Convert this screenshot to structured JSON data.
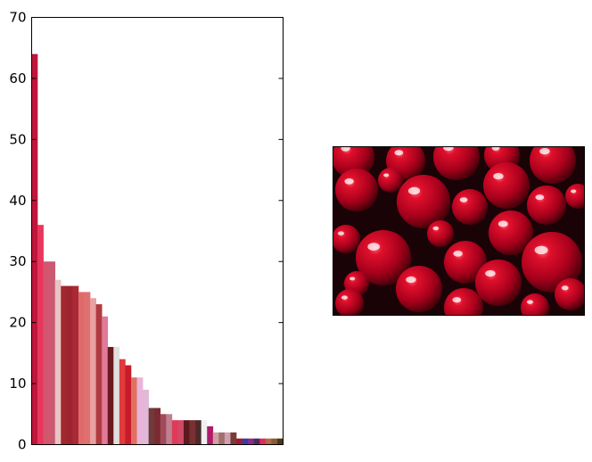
{
  "chart_data": {
    "type": "bar",
    "ylim": [
      0,
      70
    ],
    "yticks": [
      "0",
      "10",
      "20",
      "30",
      "40",
      "50",
      "60",
      "70"
    ],
    "grid": false,
    "values": [
      64,
      36,
      30,
      30,
      27,
      26,
      26,
      26,
      25,
      25,
      24,
      23,
      21,
      16,
      16,
      14,
      13,
      11,
      11,
      9,
      6,
      6,
      5,
      5,
      4,
      4,
      4,
      4,
      4,
      4,
      3,
      2,
      2,
      2,
      2,
      1,
      1,
      1,
      1,
      1,
      1,
      1,
      1
    ],
    "colors": [
      "#c0163b",
      "#e8365c",
      "#d4566e",
      "#c95a72",
      "#e8c4c4",
      "#a0282e",
      "#9e2430",
      "#a82a35",
      "#e06a6a",
      "#e07070",
      "#e8a0a0",
      "#b03a40",
      "#e07a98",
      "#6a1a1e",
      "#e0e0e0",
      "#e03a3a",
      "#c81a2a",
      "#e07060",
      "#e8b4d8",
      "#e0b8d8",
      "#6e3a3a",
      "#7a2a30",
      "#a04a5a",
      "#c08090",
      "#e03a5a",
      "#d04868",
      "#5a1a1e",
      "#7a3030",
      "#4a2a2a",
      "#f0f0f0",
      "#b01a6a",
      "#d0a0a0",
      "#a07070",
      "#d0a0b0",
      "#7a3a3a",
      "#a01a2a",
      "#3a3aa0",
      "#8a2a8a",
      "#4a2a5a",
      "#e02a5a",
      "#b06a4a",
      "#8a5a3a",
      "#4a3a1a"
    ]
  },
  "photo": {
    "subject": "red cranberries",
    "colors": [
      "#a8001c",
      "#1a0306",
      "#ffffff",
      "#d01030"
    ]
  }
}
